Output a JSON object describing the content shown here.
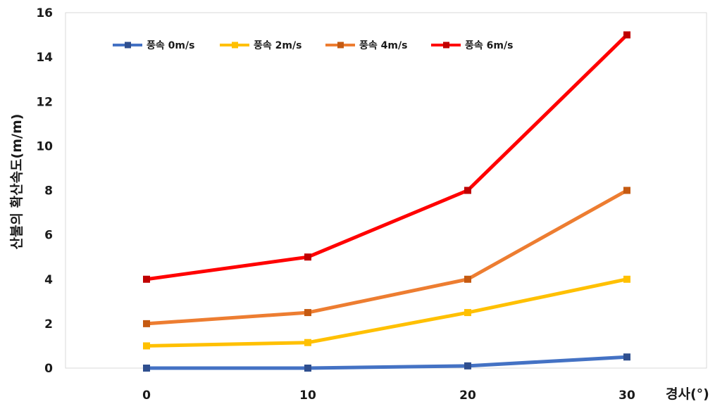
{
  "chart_data": {
    "type": "line",
    "x": [
      0,
      10,
      20,
      30
    ],
    "xlabel": "경사(°)",
    "ylabel": "산불의 확산속도(m/m)",
    "ylim": [
      0,
      16
    ],
    "yticks": [
      0,
      2,
      4,
      6,
      8,
      10,
      12,
      14,
      16
    ],
    "xticks": [
      "0",
      "10",
      "20",
      "30"
    ],
    "grid": false,
    "legend_position": "top-left",
    "series": [
      {
        "name": "풍속 0m/s",
        "color": "#4472C4",
        "marker_color": "#2F4F8F",
        "values": [
          0,
          0,
          0.1,
          0.5
        ]
      },
      {
        "name": "풍속 2m/s",
        "color": "#FFC000",
        "marker_color": "#FFC000",
        "values": [
          1,
          1.15,
          2.5,
          4
        ]
      },
      {
        "name": "풍속 4m/s",
        "color": "#ED7D31",
        "marker_color": "#C55A11",
        "values": [
          2,
          2.5,
          4,
          8
        ]
      },
      {
        "name": "풍속 6m/s",
        "color": "#FF0000",
        "marker_color": "#C00000",
        "values": [
          4,
          5,
          8,
          15
        ]
      }
    ]
  }
}
